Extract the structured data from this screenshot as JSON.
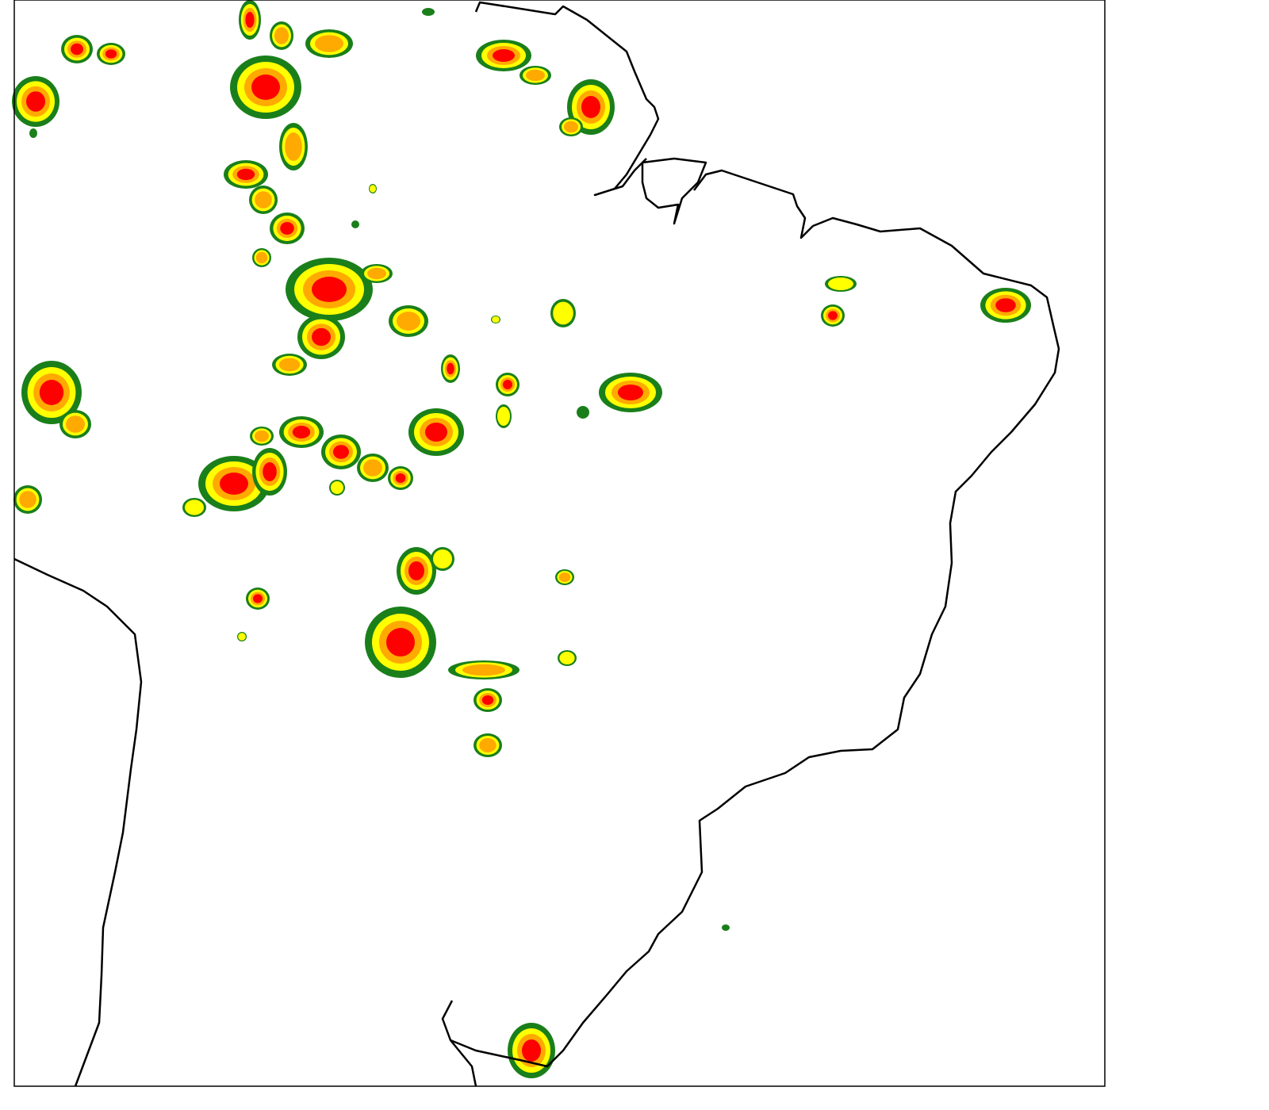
{
  "map": {
    "level_colors": [
      "#1a7f1a",
      "#ffff00",
      "#ffaa00",
      "#ff0000"
    ]
  }
}
